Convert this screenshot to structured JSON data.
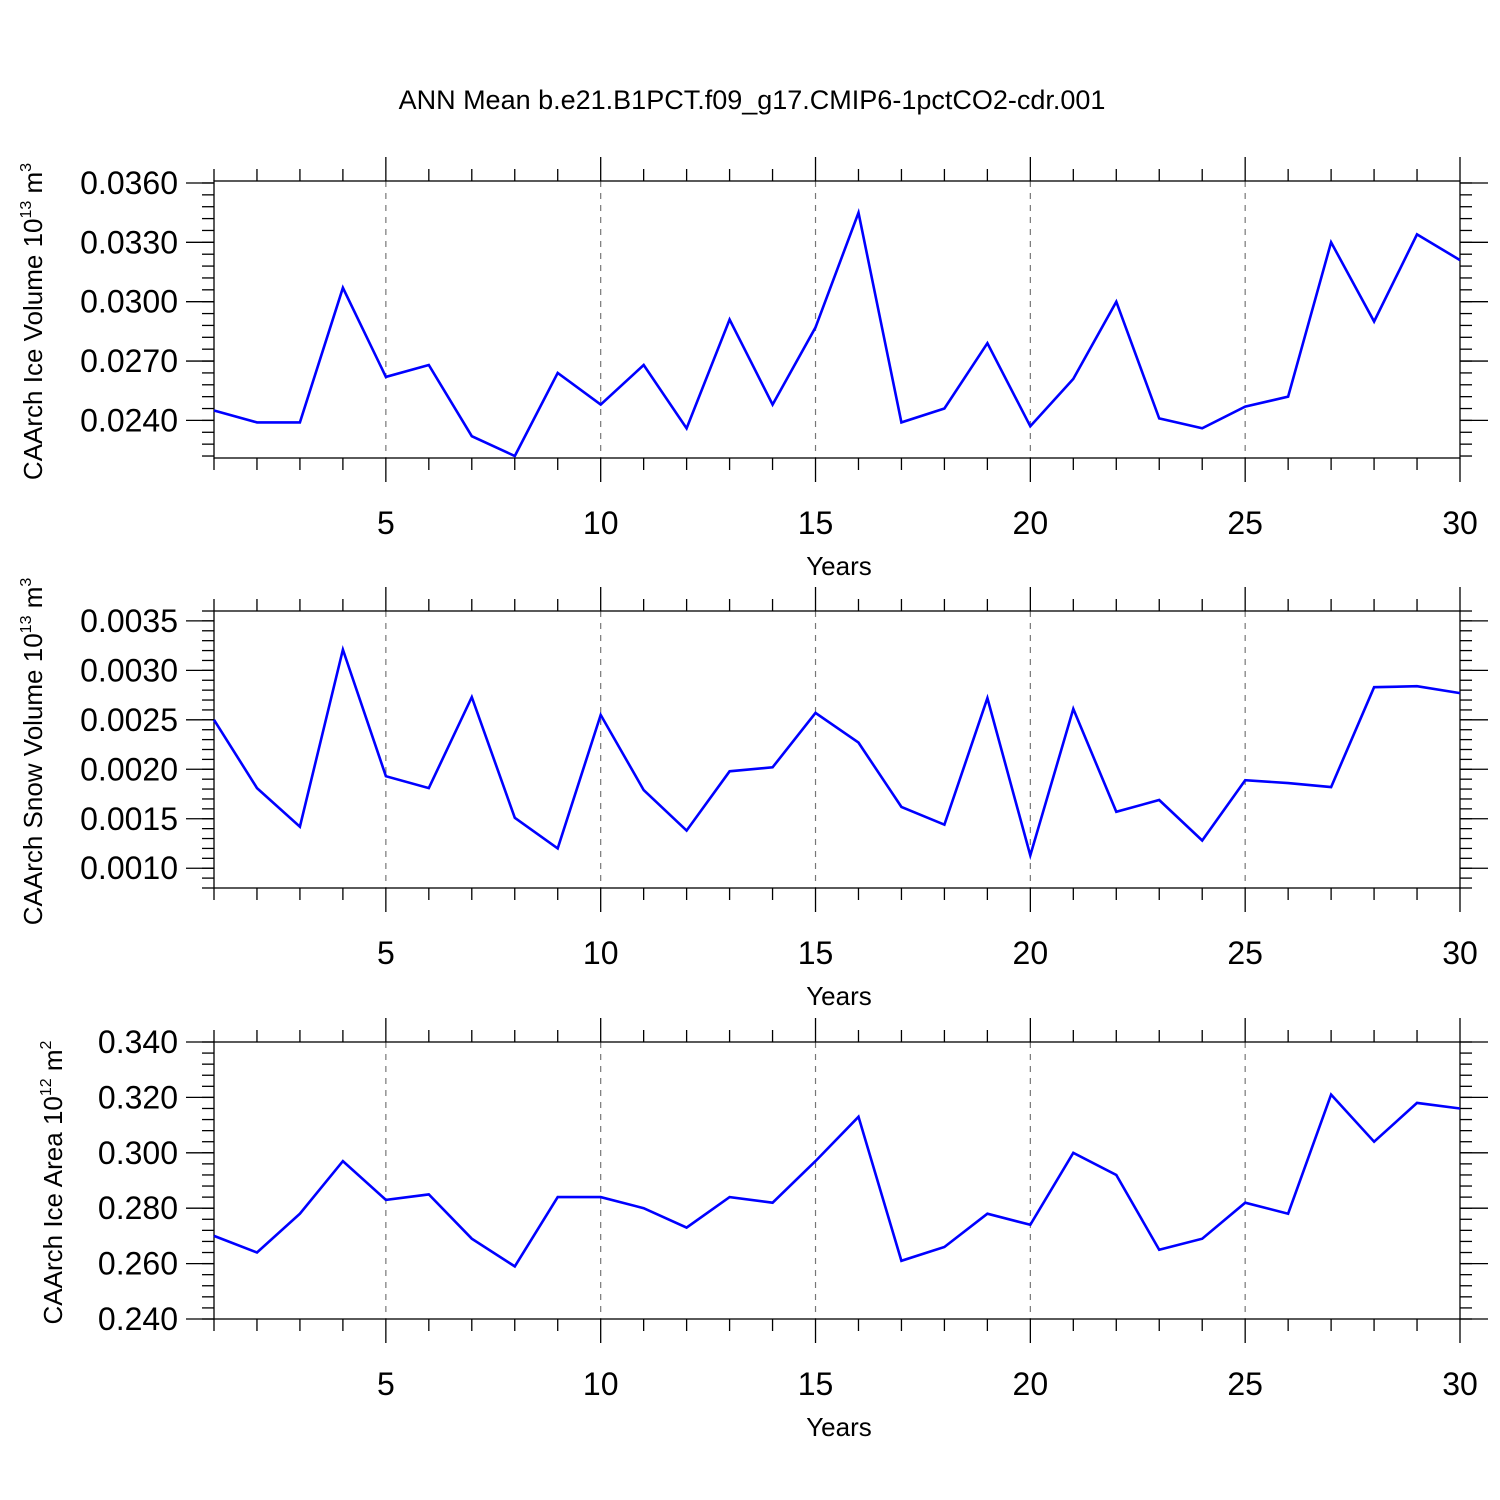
{
  "title": "ANN Mean b.e21.B1PCT.f09_g17.CMIP6-1pctCO2-cdr.001",
  "line_color": "#0000ff",
  "chart_data": [
    {
      "type": "line",
      "ylabel": "CAArch Ice Volume 10",
      "ylabel_exp": "13",
      "ylabel_unit": " m",
      "ylabel_unit_exp": "3",
      "xlabel": "Years",
      "xlim": [
        1,
        30
      ],
      "ylim": [
        0.0221,
        0.0361
      ],
      "x_ticks": [
        5,
        10,
        15,
        20,
        25,
        30
      ],
      "y_ticks": [
        "0.0240",
        "0.0270",
        "0.0300",
        "0.0330",
        "0.0360"
      ],
      "y_minor_step": 0.0006,
      "grid": "x-dashed",
      "series": [
        {
          "x": [
            1,
            2,
            3,
            4,
            5,
            6,
            7,
            8,
            9,
            10,
            11,
            12,
            13,
            14,
            15,
            16,
            17,
            18,
            19,
            20,
            21,
            22,
            23,
            24,
            25,
            26,
            27,
            28,
            29,
            30
          ],
          "values": [
            0.0245,
            0.0239,
            0.0239,
            0.0307,
            0.0262,
            0.0268,
            0.0232,
            0.0222,
            0.0264,
            0.0248,
            0.0268,
            0.0236,
            0.0291,
            0.0248,
            0.0287,
            0.0345,
            0.0239,
            0.0246,
            0.0279,
            0.0237,
            0.0261,
            0.03,
            0.0241,
            0.0236,
            0.0247,
            0.0252,
            0.033,
            0.029,
            0.0334,
            0.0321
          ]
        }
      ]
    },
    {
      "type": "line",
      "ylabel": "CAArch Snow Volume 10",
      "ylabel_exp": "13",
      "ylabel_unit": " m",
      "ylabel_unit_exp": "3",
      "xlabel": "Years",
      "xlim": [
        1,
        30
      ],
      "ylim": [
        0.0008,
        0.0036
      ],
      "x_ticks": [
        5,
        10,
        15,
        20,
        25,
        30
      ],
      "y_ticks": [
        "0.0010",
        "0.0015",
        "0.0020",
        "0.0025",
        "0.0030",
        "0.0035"
      ],
      "y_minor_step": 0.0001,
      "grid": "x-dashed",
      "series": [
        {
          "x": [
            1,
            2,
            3,
            4,
            5,
            6,
            7,
            8,
            9,
            10,
            11,
            12,
            13,
            14,
            15,
            16,
            17,
            18,
            19,
            20,
            21,
            22,
            23,
            24,
            25,
            26,
            27,
            28,
            29,
            30
          ],
          "values": [
            0.0025,
            0.00181,
            0.00142,
            0.00321,
            0.00193,
            0.00181,
            0.00273,
            0.00151,
            0.0012,
            0.00255,
            0.00179,
            0.00138,
            0.00198,
            0.00202,
            0.00257,
            0.00227,
            0.00162,
            0.00144,
            0.00272,
            0.00113,
            0.00261,
            0.00157,
            0.00169,
            0.00128,
            0.00189,
            0.00186,
            0.00182,
            0.00283,
            0.00284,
            0.00277
          ]
        }
      ]
    },
    {
      "type": "line",
      "ylabel": "CAArch Ice Area 10",
      "ylabel_exp": "12",
      "ylabel_unit": " m",
      "ylabel_unit_exp": "2",
      "xlabel": "Years",
      "xlim": [
        1,
        30
      ],
      "ylim": [
        0.24,
        0.34
      ],
      "x_ticks": [
        5,
        10,
        15,
        20,
        25,
        30
      ],
      "y_ticks": [
        "0.240",
        "0.260",
        "0.280",
        "0.300",
        "0.320",
        "0.340"
      ],
      "y_minor_step": 0.004,
      "grid": "x-dashed",
      "series": [
        {
          "x": [
            1,
            2,
            3,
            4,
            5,
            6,
            7,
            8,
            9,
            10,
            11,
            12,
            13,
            14,
            15,
            16,
            17,
            18,
            19,
            20,
            21,
            22,
            23,
            24,
            25,
            26,
            27,
            28,
            29,
            30
          ],
          "values": [
            0.27,
            0.264,
            0.278,
            0.297,
            0.283,
            0.285,
            0.269,
            0.259,
            0.284,
            0.284,
            0.28,
            0.273,
            0.284,
            0.282,
            0.297,
            0.313,
            0.261,
            0.266,
            0.278,
            0.274,
            0.3,
            0.292,
            0.265,
            0.269,
            0.282,
            0.278,
            0.321,
            0.304,
            0.318,
            0.316
          ]
        }
      ]
    }
  ]
}
